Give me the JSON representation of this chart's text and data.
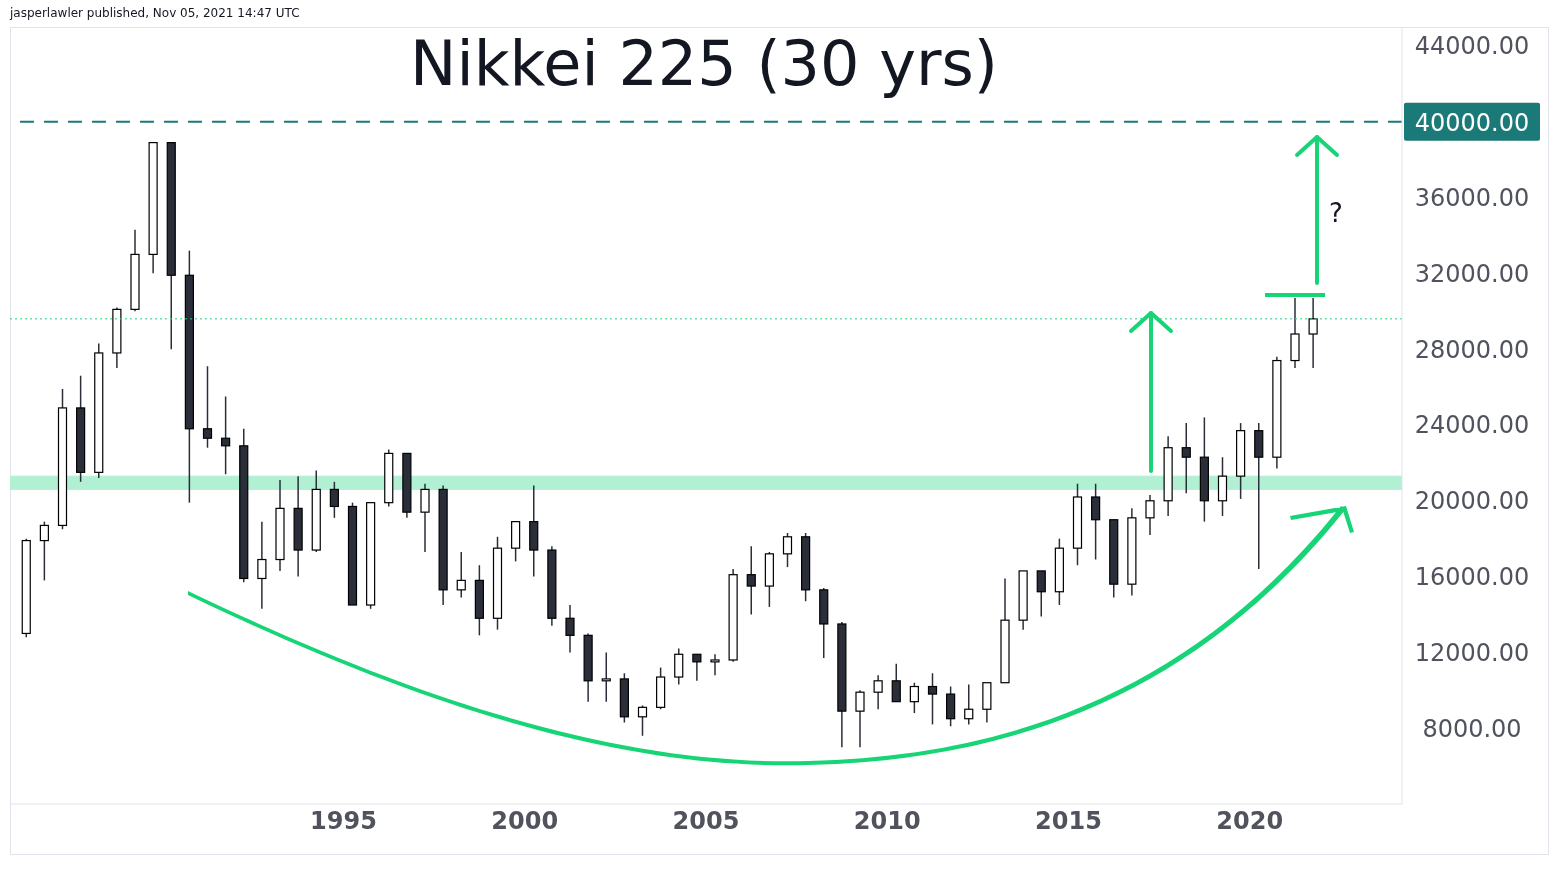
{
  "chart_data": {
    "type": "candlestick",
    "title": "Nikkei 225 (30 yrs)",
    "annotations": [
      "jasperlawler published, Nov 05, 2021 14:47 UTC",
      "?"
    ],
    "x": [
      1986.25,
      1986.75,
      1987.25,
      1987.75,
      1988.25,
      1988.75,
      1989.25,
      1989.75,
      1990.25,
      1990.75,
      1991.25,
      1991.75,
      1992.25,
      1992.75,
      1993.25,
      1993.75,
      1994.25,
      1994.75,
      1995.25,
      1995.75,
      1996.25,
      1996.75,
      1997.25,
      1997.75,
      1998.25,
      1998.75,
      1999.25,
      1999.75,
      2000.25,
      2000.75,
      2001.25,
      2001.75,
      2002.25,
      2002.75,
      2003.25,
      2003.75,
      2004.25,
      2004.75,
      2005.25,
      2005.75,
      2006.25,
      2006.75,
      2007.25,
      2007.75,
      2008.25,
      2008.75,
      2009.25,
      2009.75,
      2010.25,
      2010.75,
      2011.25,
      2011.75,
      2012.25,
      2012.75,
      2013.25,
      2013.75,
      2014.25,
      2014.75,
      2015.25,
      2015.75,
      2016.25,
      2016.75,
      2017.25,
      2017.75,
      2018.25,
      2018.75,
      2019.25,
      2019.75,
      2020.25,
      2020.75,
      2021.25,
      2021.75
    ],
    "ohlc": [
      [
        13000,
        18000,
        12800,
        17900
      ],
      [
        17900,
        18900,
        15800,
        18700
      ],
      [
        18700,
        25900,
        18500,
        24900
      ],
      [
        24900,
        26600,
        21000,
        21500
      ],
      [
        21500,
        28300,
        21200,
        27800
      ],
      [
        27800,
        30200,
        27000,
        30100
      ],
      [
        30100,
        34300,
        30000,
        33000
      ],
      [
        33000,
        38900,
        32000,
        38900
      ],
      [
        38900,
        38900,
        28000,
        31900
      ],
      [
        31900,
        33200,
        19900,
        23800
      ],
      [
        23800,
        27100,
        22800,
        23300
      ],
      [
        23300,
        25500,
        21400,
        22900
      ],
      [
        22900,
        23800,
        15700,
        15900
      ],
      [
        15900,
        18900,
        14300,
        16900
      ],
      [
        16900,
        21100,
        16300,
        19600
      ],
      [
        19600,
        21300,
        16000,
        17400
      ],
      [
        17400,
        21600,
        17300,
        20600
      ],
      [
        20600,
        21000,
        19100,
        19700
      ],
      [
        19700,
        19900,
        14500,
        14500
      ],
      [
        14500,
        19900,
        14300,
        19900
      ],
      [
        19900,
        22700,
        19700,
        22500
      ],
      [
        22500,
        22500,
        19100,
        19400
      ],
      [
        19400,
        20900,
        17300,
        20600
      ],
      [
        20600,
        20800,
        14500,
        15300
      ],
      [
        15300,
        17300,
        14900,
        15800
      ],
      [
        15800,
        16600,
        12900,
        13800
      ],
      [
        13800,
        18100,
        13200,
        17500
      ],
      [
        17500,
        18900,
        16800,
        18900
      ],
      [
        18900,
        20800,
        16000,
        17400
      ],
      [
        17400,
        17600,
        13400,
        13800
      ],
      [
        13800,
        14500,
        12000,
        12900
      ],
      [
        12900,
        13000,
        9400,
        10500
      ],
      [
        10500,
        12000,
        9400,
        10600
      ],
      [
        10600,
        10900,
        8300,
        8600
      ],
      [
        8600,
        9200,
        7600,
        9100
      ],
      [
        9100,
        11200,
        9000,
        10700
      ],
      [
        10700,
        12200,
        10300,
        11900
      ],
      [
        11900,
        11900,
        10500,
        11500
      ],
      [
        11500,
        11900,
        10800,
        11600
      ],
      [
        11600,
        16400,
        11500,
        16100
      ],
      [
        16100,
        17600,
        14000,
        15500
      ],
      [
        15500,
        17300,
        14400,
        17200
      ],
      [
        17200,
        18300,
        16500,
        18100
      ],
      [
        18100,
        18300,
        14700,
        15300
      ],
      [
        15300,
        15400,
        11700,
        13500
      ],
      [
        13500,
        13600,
        7000,
        8900
      ],
      [
        8900,
        10000,
        7000,
        9900
      ],
      [
        9900,
        10800,
        9000,
        10500
      ],
      [
        10500,
        11400,
        9400,
        9400
      ],
      [
        9400,
        10400,
        8800,
        10200
      ],
      [
        10200,
        10900,
        8200,
        9800
      ],
      [
        9800,
        10200,
        8100,
        8500
      ],
      [
        8500,
        10300,
        8200,
        9000
      ],
      [
        9000,
        10400,
        8300,
        10400
      ],
      [
        10400,
        15900,
        10400,
        13700
      ],
      [
        13700,
        16300,
        13200,
        16300
      ],
      [
        16300,
        16300,
        13900,
        15200
      ],
      [
        15200,
        18000,
        14500,
        17500
      ],
      [
        17500,
        20900,
        16600,
        20200
      ],
      [
        20200,
        20900,
        16900,
        19000
      ],
      [
        19000,
        19000,
        14900,
        15600
      ],
      [
        15600,
        19600,
        15000,
        19100
      ],
      [
        19100,
        20300,
        18200,
        20000
      ],
      [
        20000,
        23400,
        19200,
        22800
      ],
      [
        22800,
        24100,
        20400,
        22300
      ],
      [
        22300,
        24400,
        18900,
        20000
      ],
      [
        20000,
        22300,
        19200,
        21300
      ],
      [
        21300,
        24100,
        20100,
        23700
      ],
      [
        23700,
        24100,
        16400,
        22300
      ],
      [
        22300,
        27600,
        21700,
        27400
      ],
      [
        27400,
        30700,
        27000,
        28800
      ],
      [
        28800,
        30700,
        27000,
        29600
      ]
    ],
    "xlim": [
      1985.8,
      2024.2
    ],
    "xticks": [
      1995,
      2000,
      2005,
      2010,
      2015,
      2020
    ],
    "ylim": [
      4000,
      45000
    ],
    "yticks": [
      {
        "value": 8000,
        "label": "8000.00"
      },
      {
        "value": 12000,
        "label": "12000.00"
      },
      {
        "value": 16000,
        "label": "16000.00"
      },
      {
        "value": 20000,
        "label": "20000.00"
      },
      {
        "value": 24000,
        "label": "24000.00"
      },
      {
        "value": 28000,
        "label": "28000.00"
      },
      {
        "value": 32000,
        "label": "32000.00"
      },
      {
        "value": 36000,
        "label": "36000.00"
      },
      {
        "value": 44000,
        "label": "44000.00"
      }
    ],
    "ref_lines": [
      {
        "axis": "y",
        "value": 40000,
        "label": "40000.00",
        "color": "#1b7a78",
        "line_style": "dashed"
      },
      {
        "axis": "y",
        "value": 29600,
        "label": null,
        "color": "#22d17f",
        "line_style": "dotted"
      }
    ],
    "bands": [
      {
        "axis": "y",
        "from": 20600,
        "to": 21300,
        "label": null,
        "color": "#b2f0d4"
      }
    ]
  }
}
